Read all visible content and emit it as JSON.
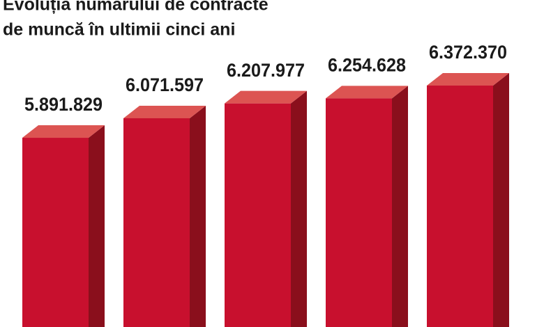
{
  "chart_data": {
    "type": "bar3d",
    "title": [
      "Evoluția numărului de contracte",
      "de muncă în ultimii cinci ani"
    ],
    "categories": [
      null,
      null,
      null,
      null,
      null
    ],
    "values": [
      5891829,
      6071597,
      6207977,
      6254628,
      6372370
    ],
    "value_labels": [
      "5.891.829",
      "6.071.597",
      "6.207.977",
      "6.254.628",
      "6.372.370"
    ],
    "color": "#c8102e",
    "ylim": [
      4150000,
      7000000
    ]
  }
}
